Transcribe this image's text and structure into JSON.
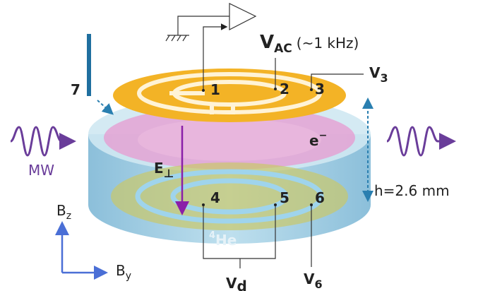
{
  "labels": {
    "v_ac": {
      "symbol": "V",
      "sub": "AC",
      "note": "(~1 kHz)"
    },
    "v_3": {
      "symbol": "V",
      "sub": "3"
    },
    "v_d": {
      "symbol": "V",
      "sub": "d"
    },
    "v_6": {
      "symbol": "V",
      "sub": "6"
    },
    "electrodes": [
      "1",
      "2",
      "3",
      "4",
      "5",
      "6",
      "7"
    ],
    "electron": {
      "symbol": "e",
      "sup": "−"
    },
    "microwave": "MW",
    "field": {
      "symbol": "E",
      "sub": "⊥"
    },
    "height": "h=2.6 mm",
    "helium": {
      "sup": "4",
      "symbol": "He"
    },
    "b_z": {
      "symbol": "B",
      "sub": "z"
    },
    "b_y": {
      "symbol": "B",
      "sub": "y"
    }
  }
}
